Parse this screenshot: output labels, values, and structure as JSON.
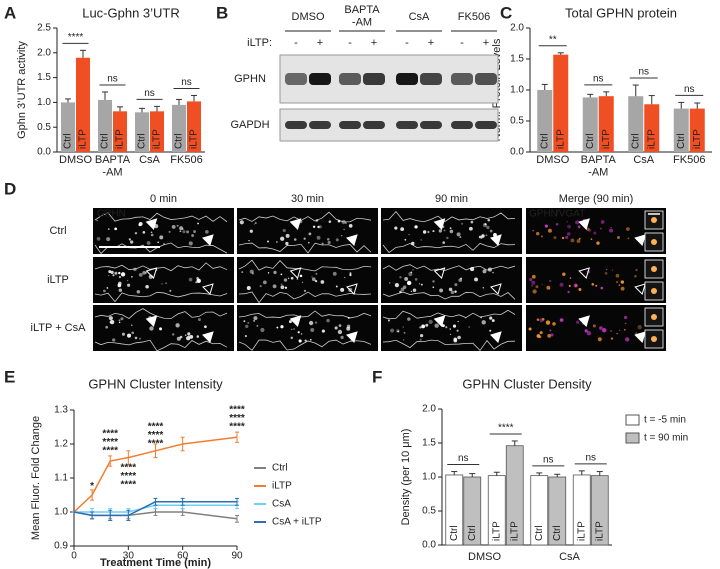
{
  "panel_labels": [
    "A",
    "B",
    "C",
    "D",
    "E",
    "F"
  ],
  "chart_data": [
    {
      "type": "bar",
      "title": "Luc-Gphn 3’UTR",
      "y_label": "Gphn 3’UTR activity",
      "categories": [
        "DMSO",
        "BAPTA\n-AM",
        "CsA",
        "FK506"
      ],
      "series": [
        {
          "name": "Ctrl",
          "color": "#a6a6a6",
          "values": [
            1.0,
            1.05,
            0.8,
            0.95
          ],
          "errors": [
            0.07,
            0.16,
            0.08,
            0.11
          ]
        },
        {
          "name": "iLTP",
          "color": "#f04e23",
          "values": [
            1.9,
            0.82,
            0.82,
            1.02
          ],
          "errors": [
            0.15,
            0.09,
            0.1,
            0.12
          ]
        }
      ],
      "annotations": [
        "****",
        "ns",
        "ns",
        "ns"
      ],
      "ylim": [
        0,
        2.5
      ],
      "yticks": [
        {
          "value": 0,
          "label": "0.0"
        },
        {
          "value": 0.5,
          "label": "0.5"
        },
        {
          "value": 1,
          "label": "1.0"
        },
        {
          "value": 1.5,
          "label": "1.5"
        },
        {
          "value": 2,
          "label": "2.0"
        },
        {
          "value": 2.5,
          "label": "2.5"
        }
      ]
    },
    {
      "type": "bar",
      "title": "Total GPHN protein",
      "y_label": "Norm. Protein Levels",
      "categories": [
        "DMSO",
        "BAPTA\n-AM",
        "CsA",
        "FK506"
      ],
      "series": [
        {
          "name": "Ctrl",
          "color": "#a6a6a6",
          "values": [
            1.0,
            0.88,
            0.9,
            0.7
          ],
          "errors": [
            0.09,
            0.05,
            0.18,
            0.1
          ]
        },
        {
          "name": "iLTP",
          "color": "#f04e23",
          "values": [
            1.57,
            0.9,
            0.77,
            0.7
          ],
          "errors": [
            0.03,
            0.07,
            0.14,
            0.09
          ]
        }
      ],
      "annotations": [
        "**",
        "ns",
        "ns",
        "ns"
      ],
      "ylim": [
        0,
        2
      ],
      "yticks": [
        {
          "value": 0,
          "label": "0.0"
        },
        {
          "value": 0.5,
          "label": "0.5"
        },
        {
          "value": 1,
          "label": "1.0"
        },
        {
          "value": 1.5,
          "label": "1.5"
        },
        {
          "value": 2,
          "label": "2.0"
        }
      ]
    },
    {
      "type": "line",
      "title": "GPHN Cluster Intensity",
      "x_label": "Treatment Time (min)",
      "y_label": "Mean Fluor. Fold Change",
      "x": [
        0,
        10,
        20,
        30,
        45,
        60,
        90
      ],
      "series": [
        {
          "name": "Ctrl",
          "color": "#808080",
          "values": [
            1.0,
            0.99,
            0.99,
            0.99,
            1.0,
            1.0,
            0.98
          ],
          "errors": [
            0,
            0.01,
            0.01,
            0.01,
            0.01,
            0.01,
            0.01
          ]
        },
        {
          "name": "iLTP",
          "color": "#f47c30",
          "values": [
            1.0,
            1.05,
            1.15,
            1.16,
            1.18,
            1.2,
            1.22
          ],
          "errors": [
            0,
            0.015,
            0.015,
            0.02,
            0.02,
            0.02,
            0.015
          ]
        },
        {
          "name": "CsA",
          "color": "#6dcff6",
          "values": [
            1.0,
            1.0,
            1.0,
            1.0,
            1.02,
            1.02,
            1.02
          ],
          "errors": [
            0,
            0.01,
            0.01,
            0.01,
            0.01,
            0.01,
            0.01
          ]
        },
        {
          "name": "CsA + iLTP",
          "color": "#2c6fb5",
          "values": [
            1.0,
            0.99,
            0.99,
            0.99,
            1.03,
            1.03,
            1.03
          ],
          "errors": [
            0,
            0.01,
            0.015,
            0.015,
            0.01,
            0.01,
            0.01
          ]
        }
      ],
      "annotations": [
        {
          "x": 10,
          "y": 1.075,
          "label": "*",
          "color": "#808080"
        },
        {
          "x": 20,
          "y": 1.23,
          "label": "****",
          "color": "#808080"
        },
        {
          "x": 20,
          "y": 1.205,
          "label": "****",
          "color": "#6dcff6"
        },
        {
          "x": 20,
          "y": 1.18,
          "label": "****",
          "color": "#2c6fb5"
        },
        {
          "x": 30,
          "y": 1.13,
          "label": "****",
          "color": "#808080"
        },
        {
          "x": 30,
          "y": 1.105,
          "label": "****",
          "color": "#6dcff6"
        },
        {
          "x": 30,
          "y": 1.08,
          "label": "****",
          "color": "#2c6fb5"
        },
        {
          "x": 45,
          "y": 1.25,
          "label": "****",
          "color": "#808080"
        },
        {
          "x": 45,
          "y": 1.225,
          "label": "****",
          "color": "#6dcff6"
        },
        {
          "x": 45,
          "y": 1.2,
          "label": "****",
          "color": "#2c6fb5"
        },
        {
          "x": 90,
          "y": 1.3,
          "label": "****",
          "color": "#808080"
        },
        {
          "x": 90,
          "y": 1.275,
          "label": "****",
          "color": "#6dcff6"
        },
        {
          "x": 90,
          "y": 1.25,
          "label": "****",
          "color": "#2c6fb5"
        }
      ],
      "xlim": [
        0,
        90
      ],
      "xticks": [
        0,
        30,
        60,
        90
      ],
      "ylim": [
        0.9,
        1.3
      ],
      "yticks": [
        {
          "value": 0.9,
          "label": "0.9"
        },
        {
          "value": 1,
          "label": "1.0"
        },
        {
          "value": 1.1,
          "label": "1.1"
        },
        {
          "value": 1.2,
          "label": "1.2"
        },
        {
          "value": 1.3,
          "label": "1.3"
        }
      ],
      "legend": "right"
    },
    {
      "type": "bar",
      "title": "GPHN Cluster Density",
      "y_label": "Density (per 10 μm)",
      "groups": [
        "DMSO",
        "CsA"
      ],
      "categories": [
        "Ctrl",
        "iLTP",
        "Ctrl",
        "iLTP"
      ],
      "category_colors": [
        "#a6a6a6",
        "#f04e23",
        "#6dcff6",
        "#2c6fb5"
      ],
      "series": [
        {
          "name": "t = -5 min",
          "color": "#ffffff",
          "values": [
            1.03,
            1.02,
            1.02,
            1.03
          ],
          "errors": [
            0.05,
            0.05,
            0.04,
            0.06
          ]
        },
        {
          "name": "t = 90 min",
          "color": "#bfbfbf",
          "values": [
            1.0,
            1.46,
            1.0,
            1.02
          ],
          "errors": [
            0.05,
            0.07,
            0.04,
            0.06
          ]
        }
      ],
      "annotations": [
        "ns",
        "****",
        "ns",
        "ns"
      ],
      "ylim": [
        0,
        2
      ],
      "yticks": [
        {
          "value": 0,
          "label": "0.0"
        },
        {
          "value": 0.5,
          "label": "0.5"
        },
        {
          "value": 1,
          "label": "1.0"
        },
        {
          "value": 1.5,
          "label": "1.5"
        },
        {
          "value": 2,
          "label": "2.0"
        }
      ],
      "legend": "right"
    }
  ],
  "blot": {
    "treatments": [
      "DMSO",
      "BAPTA\n-AM",
      "CsA",
      "FK506"
    ],
    "condition_label": "iLTP:",
    "signs": [
      "-",
      "+"
    ],
    "proteins": [
      "GPHN",
      "GAPDH"
    ]
  },
  "imaging": {
    "timepoints": [
      "0 min",
      "30 min",
      "90 min",
      "Merge (90 min)"
    ],
    "conditions": [
      "Ctrl",
      "iLTP",
      "iLTP + CsA"
    ],
    "channel_label": "GPHN",
    "merge_labels": [
      "GPHN",
      "/VGAT"
    ]
  }
}
